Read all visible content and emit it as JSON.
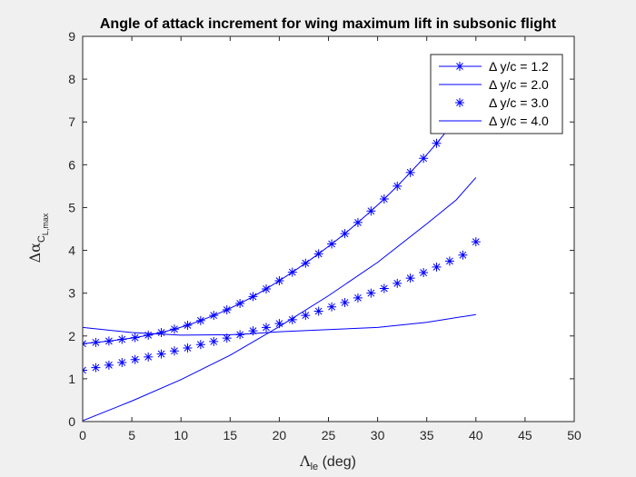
{
  "chart_data": {
    "type": "line",
    "title": "Angle of attack increment for wing maximum lift in subsonic flight",
    "xlabel": {
      "symbol": "Λ",
      "sub": "le",
      "text": " (deg)"
    },
    "ylabel": {
      "symbol": "Δα",
      "sub": "C",
      "subsub": "L,max"
    },
    "xlim": [
      0,
      50
    ],
    "ylim": [
      0,
      9
    ],
    "xticks": [
      0,
      5,
      10,
      15,
      20,
      25,
      30,
      35,
      40,
      45,
      50
    ],
    "yticks": [
      0,
      1,
      2,
      3,
      4,
      5,
      6,
      7,
      8,
      9
    ],
    "grid": false,
    "legend_location": "top-right",
    "colors": {
      "series": "#0000ff",
      "axes": "#262626",
      "background": "#ffffff",
      "figure": "#f0f0f0"
    },
    "series": [
      {
        "name": "Δ y/c = 1.2",
        "style": "line-star",
        "x": [
          0,
          1.33,
          2.67,
          4,
          5.33,
          6.67,
          8,
          9.33,
          10.67,
          12,
          13.33,
          14.67,
          16,
          17.33,
          18.67,
          20,
          21.33,
          22.67,
          24,
          25.33,
          26.67,
          28,
          29.33,
          30.67,
          32,
          33.33,
          34.67,
          36,
          37.33,
          38.67,
          40
        ],
        "y": [
          1.82,
          1.85,
          1.88,
          1.92,
          1.96,
          2.02,
          2.08,
          2.16,
          2.25,
          2.36,
          2.48,
          2.61,
          2.76,
          2.92,
          3.1,
          3.29,
          3.49,
          3.7,
          3.92,
          4.15,
          4.39,
          4.65,
          4.92,
          5.2,
          5.5,
          5.82,
          6.15,
          6.5,
          6.87,
          7.25,
          7.65
        ]
      },
      {
        "name": "Δ y/c = 2.0",
        "style": "line",
        "x": [
          0,
          5,
          10,
          15,
          20,
          25,
          30,
          35,
          38,
          40
        ],
        "y": [
          0.02,
          0.48,
          0.98,
          1.55,
          2.22,
          2.94,
          3.72,
          4.62,
          5.18,
          5.7
        ]
      },
      {
        "name": "Δ y/c = 3.0",
        "style": "star",
        "x": [
          0,
          1.33,
          2.67,
          4,
          5.33,
          6.67,
          8,
          9.33,
          10.67,
          12,
          13.33,
          14.67,
          16,
          17.33,
          18.67,
          20,
          21.33,
          22.67,
          24,
          25.33,
          26.67,
          28,
          29.33,
          30.67,
          32,
          33.33,
          34.67,
          36,
          37.33,
          38.67,
          40
        ],
        "y": [
          1.2,
          1.26,
          1.32,
          1.38,
          1.45,
          1.51,
          1.58,
          1.65,
          1.72,
          1.8,
          1.87,
          1.95,
          2.03,
          2.12,
          2.2,
          2.29,
          2.38,
          2.48,
          2.58,
          2.68,
          2.78,
          2.89,
          3.0,
          3.11,
          3.23,
          3.35,
          3.48,
          3.61,
          3.75,
          3.89,
          4.2
        ]
      },
      {
        "name": "Δ y/c = 4.0",
        "style": "line",
        "x": [
          0,
          5,
          10,
          15,
          17,
          20,
          25,
          30,
          35,
          40
        ],
        "y": [
          2.2,
          2.08,
          2.02,
          2.03,
          2.05,
          2.1,
          2.15,
          2.2,
          2.32,
          2.5
        ]
      }
    ]
  }
}
